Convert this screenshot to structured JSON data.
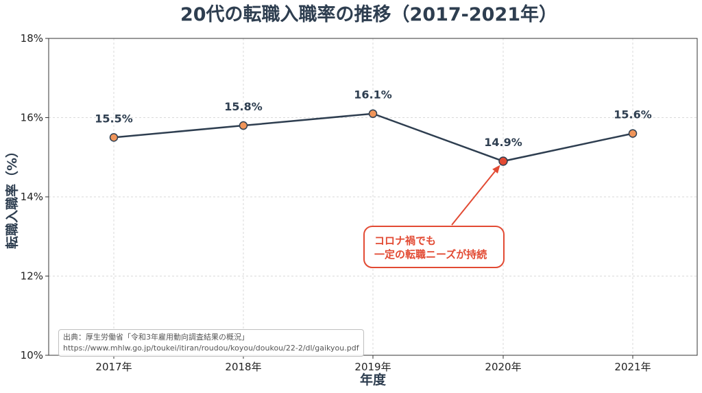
{
  "chart_data": {
    "type": "line",
    "title": "20代の転職入職率の推移（2017-2021年）",
    "xlabel": "年度",
    "ylabel": "転職入職率（%）",
    "categories": [
      "2017年",
      "2018年",
      "2019年",
      "2020年",
      "2021年"
    ],
    "values": [
      15.5,
      15.8,
      16.1,
      14.9,
      15.6
    ],
    "data_labels": [
      "15.5%",
      "15.8%",
      "16.1%",
      "14.9%",
      "15.6%"
    ],
    "ylim": [
      10,
      18
    ],
    "yticks": [
      10,
      12,
      14,
      16,
      18
    ],
    "ytick_labels": [
      "10%",
      "12%",
      "14%",
      "16%",
      "18%"
    ],
    "grid": true,
    "highlight_index": 3,
    "annotation": {
      "line1": "コロナ禍でも",
      "line2": "一定の転職ニーズが持続"
    },
    "colors": {
      "line": "#2e3e50",
      "marker": "#f0955a",
      "highlight": "#e24a33",
      "text": "#2e3e50"
    }
  },
  "source": {
    "line1": "出典：厚生労働省「令和3年雇用動向調査結果の概況」",
    "line2": "https://www.mhlw.go.jp/toukei/itiran/roudou/koyou/doukou/22-2/dl/gaikyou.pdf"
  }
}
